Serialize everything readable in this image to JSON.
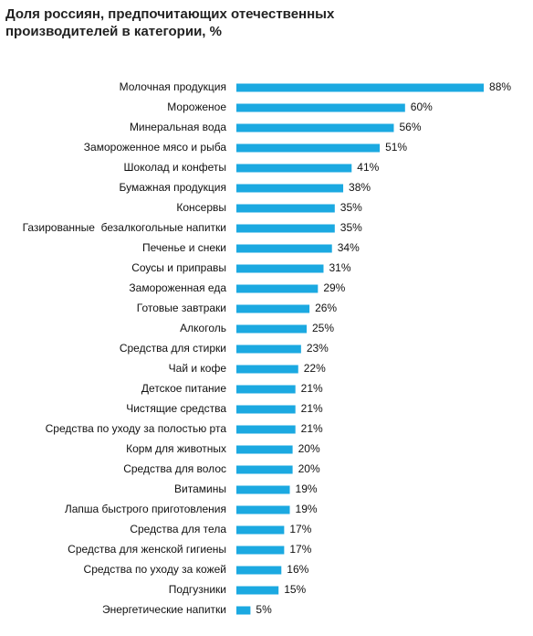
{
  "chart_data": {
    "type": "bar",
    "orientation": "horizontal",
    "title": "Доля россиян, предпочитающих отечественных производителей в категории, %",
    "categories": [
      "Молочная продукция",
      "Мороженое",
      "Минеральная вода",
      "Замороженное мясо и рыба",
      "Шоколад и конфеты",
      "Бумажная продукция",
      "Консервы",
      "Газированные  безалкогольные напитки",
      "Печенье и снеки",
      "Соусы и приправы",
      "Замороженная еда",
      "Готовые завтраки",
      "Алкоголь",
      "Средства для стирки",
      "Чай и кофе",
      "Детское питание",
      "Чистящие средства",
      "Средства по уходу за полостью рта",
      "Корм для животных",
      "Средства для волос",
      "Витамины",
      "Лапша быстрого приготовления",
      "Средства для тела",
      "Средства для женской гигиены",
      "Средства по уходу за кожей",
      "Подгузники",
      "Энергетические напитки"
    ],
    "values": [
      88,
      60,
      56,
      51,
      41,
      38,
      35,
      35,
      34,
      31,
      29,
      26,
      25,
      23,
      22,
      21,
      21,
      21,
      20,
      20,
      19,
      19,
      17,
      17,
      16,
      15,
      5
    ],
    "value_labels": [
      "88%",
      "60%",
      "56%",
      "51%",
      "41%",
      "38%",
      "35%",
      "35%",
      "34%",
      "31%",
      "29%",
      "26%",
      "25%",
      "23%",
      "22%",
      "21%",
      "21%",
      "21%",
      "20%",
      "20%",
      "19%",
      "19%",
      "17%",
      "17%",
      "16%",
      "15%",
      "5%"
    ],
    "color": "#1ba9e1"
  }
}
